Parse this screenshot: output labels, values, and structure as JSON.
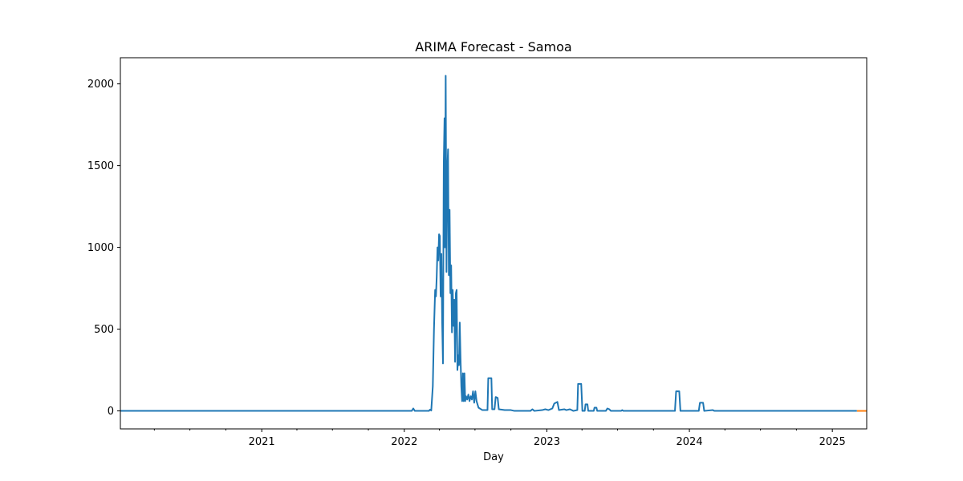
{
  "chart_data": {
    "type": "line",
    "title": "ARIMA Forecast - Samoa",
    "xlabel": "Day",
    "ylabel": "",
    "xlim": [
      "2020-01-05",
      "2025-03-30"
    ],
    "ylim": [
      -110,
      2160
    ],
    "x_ticks": [
      {
        "date": "2021-01-01",
        "label": "2021"
      },
      {
        "date": "2022-01-01",
        "label": "2022"
      },
      {
        "date": "2023-01-01",
        "label": "2023"
      },
      {
        "date": "2024-01-01",
        "label": "2024"
      },
      {
        "date": "2025-01-01",
        "label": "2025"
      }
    ],
    "y_ticks": [
      0,
      500,
      1000,
      1500,
      2000
    ],
    "grid": false,
    "series": [
      {
        "name": "",
        "color": "#1f77b4",
        "points": [
          [
            "2020-01-05",
            0
          ],
          [
            "2022-01-20",
            0
          ],
          [
            "2022-01-24",
            15
          ],
          [
            "2022-01-28",
            0
          ],
          [
            "2022-03-05",
            0
          ],
          [
            "2022-03-08",
            8
          ],
          [
            "2022-03-11",
            2
          ],
          [
            "2022-03-15",
            150
          ],
          [
            "2022-03-18",
            500
          ],
          [
            "2022-03-21",
            740
          ],
          [
            "2022-03-23",
            700
          ],
          [
            "2022-03-25",
            820
          ],
          [
            "2022-03-27",
            1000
          ],
          [
            "2022-03-29",
            920
          ],
          [
            "2022-03-31",
            1080
          ],
          [
            "2022-04-02",
            1070
          ],
          [
            "2022-04-04",
            700
          ],
          [
            "2022-04-06",
            960
          ],
          [
            "2022-04-08",
            540
          ],
          [
            "2022-04-10",
            290
          ],
          [
            "2022-04-12",
            1510
          ],
          [
            "2022-04-14",
            1790
          ],
          [
            "2022-04-15",
            1000
          ],
          [
            "2022-04-17",
            2050
          ],
          [
            "2022-04-19",
            850
          ],
          [
            "2022-04-21",
            1460
          ],
          [
            "2022-04-23",
            1600
          ],
          [
            "2022-04-25",
            830
          ],
          [
            "2022-04-27",
            1230
          ],
          [
            "2022-04-29",
            720
          ],
          [
            "2022-05-01",
            890
          ],
          [
            "2022-05-03",
            480
          ],
          [
            "2022-05-05",
            740
          ],
          [
            "2022-05-07",
            520
          ],
          [
            "2022-05-09",
            680
          ],
          [
            "2022-05-11",
            300
          ],
          [
            "2022-05-13",
            720
          ],
          [
            "2022-05-15",
            740
          ],
          [
            "2022-05-17",
            250
          ],
          [
            "2022-05-19",
            340
          ],
          [
            "2022-05-21",
            280
          ],
          [
            "2022-05-23",
            540
          ],
          [
            "2022-05-25",
            320
          ],
          [
            "2022-05-27",
            150
          ],
          [
            "2022-05-29",
            60
          ],
          [
            "2022-05-31",
            230
          ],
          [
            "2022-06-02",
            60
          ],
          [
            "2022-06-04",
            230
          ],
          [
            "2022-06-06",
            60
          ],
          [
            "2022-06-08",
            90
          ],
          [
            "2022-06-11",
            70
          ],
          [
            "2022-06-14",
            100
          ],
          [
            "2022-06-17",
            60
          ],
          [
            "2022-06-20",
            90
          ],
          [
            "2022-06-23",
            70
          ],
          [
            "2022-06-26",
            120
          ],
          [
            "2022-06-29",
            50
          ],
          [
            "2022-07-02",
            120
          ],
          [
            "2022-07-05",
            60
          ],
          [
            "2022-07-10",
            20
          ],
          [
            "2022-07-20",
            5
          ],
          [
            "2022-08-02",
            5
          ],
          [
            "2022-08-04",
            200
          ],
          [
            "2022-08-12",
            200
          ],
          [
            "2022-08-14",
            10
          ],
          [
            "2022-08-20",
            10
          ],
          [
            "2022-08-23",
            85
          ],
          [
            "2022-08-28",
            80
          ],
          [
            "2022-08-31",
            10
          ],
          [
            "2022-09-15",
            5
          ],
          [
            "2022-10-01",
            5
          ],
          [
            "2022-10-10",
            0
          ],
          [
            "2022-11-01",
            0
          ],
          [
            "2022-11-20",
            0
          ],
          [
            "2022-11-25",
            10
          ],
          [
            "2022-11-30",
            0
          ],
          [
            "2022-12-20",
            5
          ],
          [
            "2022-12-28",
            10
          ],
          [
            "2023-01-05",
            5
          ],
          [
            "2023-01-15",
            15
          ],
          [
            "2023-01-20",
            45
          ],
          [
            "2023-01-28",
            55
          ],
          [
            "2023-02-01",
            5
          ],
          [
            "2023-02-15",
            10
          ],
          [
            "2023-02-20",
            5
          ],
          [
            "2023-03-01",
            10
          ],
          [
            "2023-03-10",
            0
          ],
          [
            "2023-03-20",
            5
          ],
          [
            "2023-03-22",
            165
          ],
          [
            "2023-03-30",
            165
          ],
          [
            "2023-04-02",
            0
          ],
          [
            "2023-04-08",
            0
          ],
          [
            "2023-04-10",
            40
          ],
          [
            "2023-04-15",
            40
          ],
          [
            "2023-04-17",
            0
          ],
          [
            "2023-05-01",
            0
          ],
          [
            "2023-05-03",
            20
          ],
          [
            "2023-05-08",
            20
          ],
          [
            "2023-05-10",
            0
          ],
          [
            "2023-06-01",
            0
          ],
          [
            "2023-06-05",
            15
          ],
          [
            "2023-06-10",
            10
          ],
          [
            "2023-06-14",
            0
          ],
          [
            "2023-07-10",
            0
          ],
          [
            "2023-07-13",
            5
          ],
          [
            "2023-07-16",
            0
          ],
          [
            "2023-11-25",
            0
          ],
          [
            "2023-11-28",
            120
          ],
          [
            "2023-12-06",
            120
          ],
          [
            "2023-12-09",
            0
          ],
          [
            "2024-01-25",
            0
          ],
          [
            "2024-01-28",
            50
          ],
          [
            "2024-02-05",
            50
          ],
          [
            "2024-02-08",
            0
          ],
          [
            "2024-03-01",
            5
          ],
          [
            "2024-03-05",
            0
          ],
          [
            "2025-03-05",
            0
          ]
        ]
      },
      {
        "name": "",
        "color": "#ff7f0e",
        "points": [
          [
            "2025-03-05",
            0
          ],
          [
            "2025-03-30",
            0
          ]
        ]
      }
    ]
  }
}
